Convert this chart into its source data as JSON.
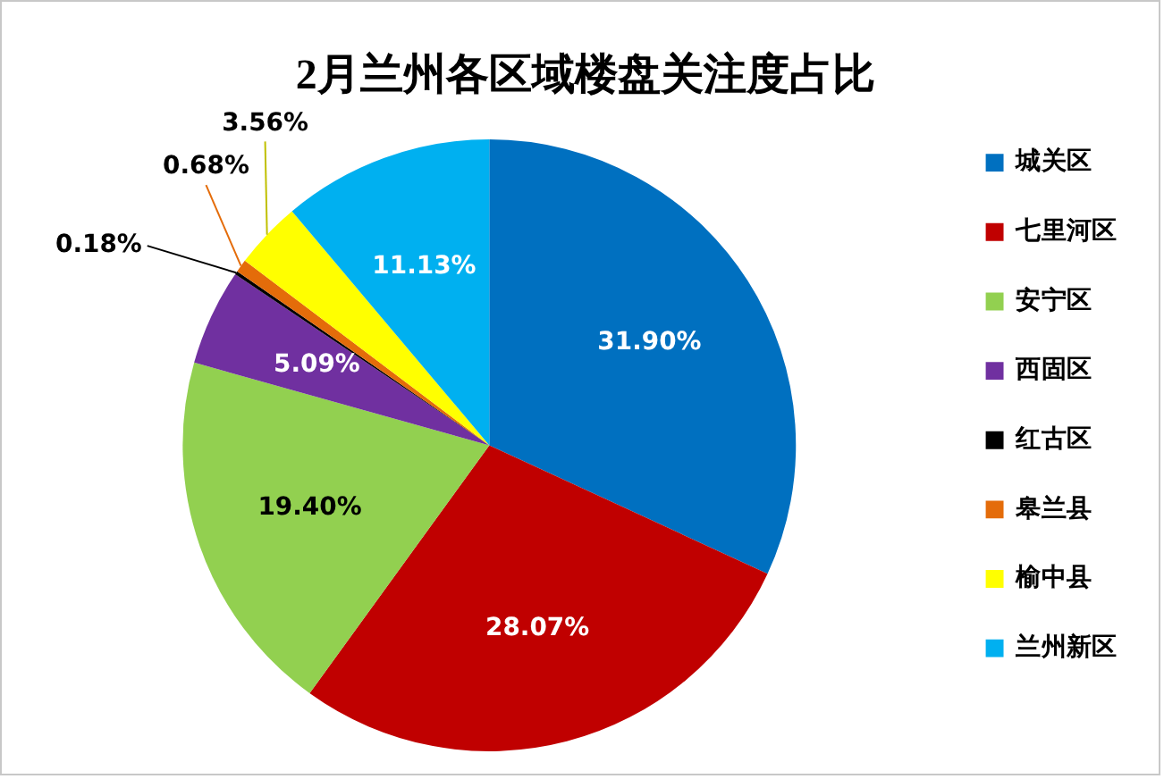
{
  "chart_data": {
    "type": "pie",
    "title": "2月兰州各区域楼盘关注度占比",
    "categories": [
      "城关区",
      "七里河区",
      "安宁区",
      "西固区",
      "红古区",
      "皋兰县",
      "榆中县",
      "兰州新区"
    ],
    "values": [
      31.9,
      28.07,
      19.4,
      5.09,
      0.18,
      0.68,
      3.56,
      11.13
    ],
    "colors": [
      "#0070c0",
      "#c00000",
      "#92d050",
      "#7030a0",
      "#000000",
      "#e46c0a",
      "#ffff00",
      "#00b0f0"
    ],
    "value_labels": [
      "31.90%",
      "28.07%",
      "19.40%",
      "5.09%",
      "0.18%",
      "0.68%",
      "3.56%",
      "11.13%"
    ],
    "legend": "right"
  }
}
